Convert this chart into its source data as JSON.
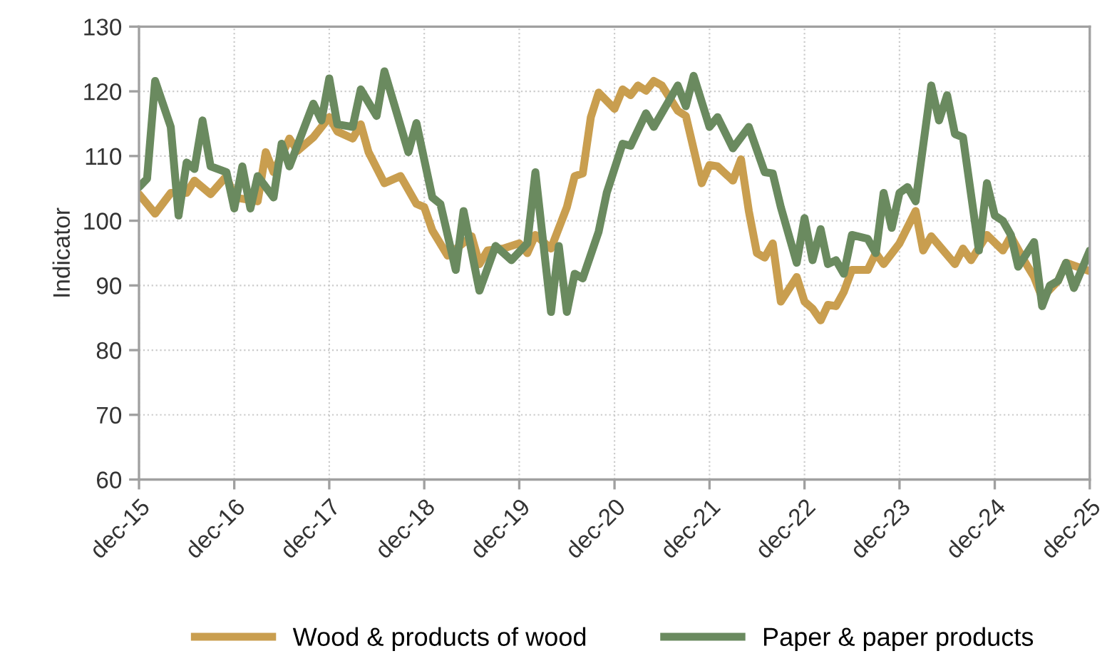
{
  "chart_data": {
    "type": "line",
    "ylabel": "Indicator",
    "xlim": [
      "2015-12",
      "2025-12"
    ],
    "xticks": [
      {
        "value": "2015-12",
        "label": "dec-15"
      },
      {
        "value": "2016-12",
        "label": "dec-16"
      },
      {
        "value": "2017-12",
        "label": "dec-17"
      },
      {
        "value": "2018-12",
        "label": "dec-18"
      },
      {
        "value": "2019-12",
        "label": "dec-19"
      },
      {
        "value": "2020-12",
        "label": "dec-20"
      },
      {
        "value": "2021-12",
        "label": "dec-21"
      },
      {
        "value": "2022-12",
        "label": "dec-22"
      },
      {
        "value": "2023-12",
        "label": "dec-23"
      },
      {
        "value": "2024-12",
        "label": "dec-24"
      },
      {
        "value": "2025-12",
        "label": "dec-25"
      }
    ],
    "ylim": [
      60,
      130
    ],
    "yticks": [
      60,
      70,
      80,
      90,
      100,
      110,
      120,
      130
    ],
    "grid": true,
    "legend": "bottom",
    "marker": "none",
    "line_style": "solid",
    "series": [
      {
        "name": "Wood & products of wood",
        "color": "#c99e4f",
        "x": [
          "2015-12",
          "2016-02",
          "2016-04",
          "2016-06",
          "2016-07",
          "2016-09",
          "2016-11",
          "2016-12",
          "2017-03",
          "2017-04",
          "2017-05",
          "2017-07",
          "2017-08",
          "2017-10",
          "2017-12",
          "2018-01",
          "2018-03",
          "2018-04",
          "2018-05",
          "2018-07",
          "2018-09",
          "2018-11",
          "2018-12",
          "2019-01",
          "2019-03",
          "2019-06",
          "2019-07",
          "2019-08",
          "2019-10",
          "2019-12",
          "2020-01",
          "2020-02",
          "2020-04",
          "2020-06",
          "2020-07",
          "2020-08",
          "2020-09",
          "2020-10",
          "2020-12",
          "2021-01",
          "2021-02",
          "2021-03",
          "2021-04",
          "2021-05",
          "2021-06",
          "2021-08",
          "2021-09",
          "2021-11",
          "2021-12",
          "2022-01",
          "2022-03",
          "2022-04",
          "2022-05",
          "2022-06",
          "2022-07",
          "2022-08",
          "2022-09",
          "2022-11",
          "2022-12",
          "2023-01",
          "2023-02",
          "2023-03",
          "2023-04",
          "2023-05",
          "2023-06",
          "2023-08",
          "2023-09",
          "2023-10",
          "2023-12",
          "2024-02",
          "2024-03",
          "2024-04",
          "2024-07",
          "2024-08",
          "2024-09",
          "2024-11",
          "2025-01",
          "2025-02",
          "2025-04",
          "2025-05",
          "2025-06",
          "2025-08",
          "2025-09",
          "2025-12"
        ],
        "values": [
          104.1,
          101.1,
          104.3,
          104.3,
          106.2,
          104.1,
          106.9,
          103.6,
          103,
          110.6,
          107.5,
          112.7,
          110.8,
          112.9,
          116,
          113.8,
          112.7,
          114.9,
          110.6,
          105.8,
          106.9,
          102.6,
          102.1,
          98.5,
          94.6,
          97.6,
          93.3,
          95.4,
          95.7,
          96.5,
          95,
          97.8,
          95.7,
          102.1,
          106.9,
          107.3,
          116,
          119.8,
          117.3,
          120.3,
          119.4,
          120.9,
          120.1,
          121.6,
          120.9,
          117,
          116.2,
          105.8,
          108.6,
          108.4,
          106.2,
          109.5,
          101.5,
          95,
          94.3,
          96.5,
          87.5,
          91.3,
          87.5,
          86.4,
          84.6,
          87,
          86.8,
          89,
          92.4,
          92.4,
          95,
          93.3,
          96.5,
          101.5,
          95.4,
          97.6,
          93.3,
          95.7,
          93.9,
          97.8,
          95.4,
          97.6,
          93.3,
          91.3,
          88.1,
          90.7,
          93.5,
          92.2
        ]
      },
      {
        "name": "Paper & paper products",
        "color": "#6a8a5f",
        "x": [
          "2015-12",
          "2016-01",
          "2016-02",
          "2016-04",
          "2016-05",
          "2016-06",
          "2016-07",
          "2016-08",
          "2016-09",
          "2016-11",
          "2016-12",
          "2017-01",
          "2017-02",
          "2017-03",
          "2017-05",
          "2017-06",
          "2017-07",
          "2017-10",
          "2017-11",
          "2017-12",
          "2018-01",
          "2018-03",
          "2018-04",
          "2018-06",
          "2018-07",
          "2018-10",
          "2018-11",
          "2019-01",
          "2019-02",
          "2019-04",
          "2019-05",
          "2019-07",
          "2019-09",
          "2019-11",
          "2020-01",
          "2020-02",
          "2020-04",
          "2020-05",
          "2020-06",
          "2020-07",
          "2020-08",
          "2020-10",
          "2020-11",
          "2021-01",
          "2021-02",
          "2021-04",
          "2021-05",
          "2021-08",
          "2021-09",
          "2021-10",
          "2021-12",
          "2022-01",
          "2022-03",
          "2022-05",
          "2022-07",
          "2022-08",
          "2022-09",
          "2022-11",
          "2022-12",
          "2023-01",
          "2023-02",
          "2023-03",
          "2023-04",
          "2023-05",
          "2023-06",
          "2023-08",
          "2023-09",
          "2023-10",
          "2023-11",
          "2023-12",
          "2024-01",
          "2024-02",
          "2024-04",
          "2024-05",
          "2024-06",
          "2024-07",
          "2024-08",
          "2024-10",
          "2024-11",
          "2024-12",
          "2025-01",
          "2025-02",
          "2025-03",
          "2025-05",
          "2025-06",
          "2025-07",
          "2025-08",
          "2025-09",
          "2025-10",
          "2025-12"
        ],
        "values": [
          105.2,
          106.5,
          121.6,
          114.5,
          100.8,
          109,
          108,
          115.5,
          108.4,
          107.5,
          101.9,
          108.4,
          101.9,
          106.9,
          103.6,
          111.9,
          108.4,
          118.1,
          115.5,
          122,
          114.9,
          114.5,
          120.3,
          116.2,
          123.1,
          110.6,
          115.1,
          103.6,
          102.6,
          92.4,
          101.5,
          89.2,
          96.1,
          93.9,
          96.5,
          107.5,
          85.9,
          96.1,
          85.9,
          91.8,
          91.1,
          98.3,
          104.3,
          111.9,
          111.6,
          116.6,
          114.5,
          120.9,
          117.7,
          122.4,
          114.5,
          116,
          111.2,
          114.5,
          107.5,
          107.3,
          102.1,
          93.5,
          100.4,
          93.9,
          98.7,
          93.3,
          93.9,
          91.8,
          97.8,
          97.2,
          95,
          104.3,
          98.9,
          104.3,
          105.2,
          103,
          120.9,
          115.5,
          119.4,
          113.4,
          112.9,
          95.4,
          105.8,
          100.8,
          100,
          97.8,
          92.9,
          96.7,
          86.8,
          90,
          90.7,
          93.5,
          89.6,
          95.4
        ]
      }
    ]
  }
}
